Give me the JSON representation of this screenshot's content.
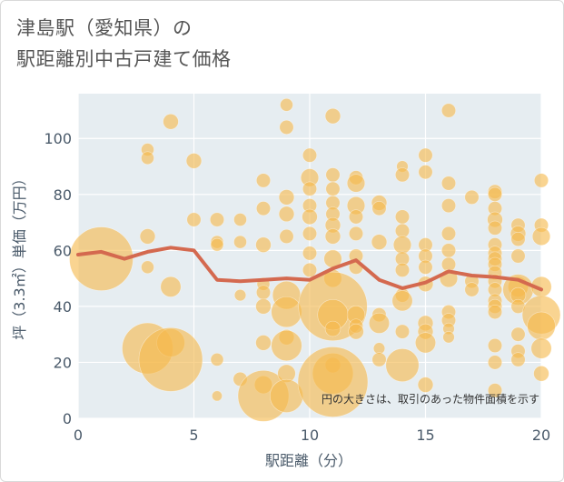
{
  "chart_data": {
    "type": "scatter",
    "title_line1": "津島駅（愛知県）の",
    "title_line2": "駅距離別中古戸建て価格",
    "xlabel": "駅距離（分）",
    "ylabel": "坪（3.3㎡）単価（万円）",
    "xlim": [
      0,
      20
    ],
    "ylim": [
      0,
      116
    ],
    "xticks": [
      0,
      5,
      10,
      15,
      20
    ],
    "yticks": [
      0,
      20,
      40,
      60,
      80,
      100
    ],
    "grid": true,
    "note": "円の大きさは、取引のあった物件面積を示す",
    "bubble_color": "#f5b94e",
    "line_color": "#d4694f",
    "points": [
      {
        "x": 1,
        "y": 57,
        "s": 5
      },
      {
        "x": 3,
        "y": 96,
        "s": 1
      },
      {
        "x": 3,
        "y": 93,
        "s": 1
      },
      {
        "x": 3,
        "y": 65,
        "s": 1.2
      },
      {
        "x": 3,
        "y": 54,
        "s": 1
      },
      {
        "x": 3,
        "y": 25,
        "s": 4
      },
      {
        "x": 4,
        "y": 106,
        "s": 1.2
      },
      {
        "x": 4,
        "y": 47,
        "s": 1.6
      },
      {
        "x": 4,
        "y": 27,
        "s": 2.2
      },
      {
        "x": 4,
        "y": 21,
        "s": 5
      },
      {
        "x": 5,
        "y": 92,
        "s": 1.2
      },
      {
        "x": 5,
        "y": 71,
        "s": 1.1
      },
      {
        "x": 6,
        "y": 71,
        "s": 1.1
      },
      {
        "x": 6,
        "y": 63,
        "s": 1
      },
      {
        "x": 6,
        "y": 62,
        "s": 1
      },
      {
        "x": 6,
        "y": 21,
        "s": 1
      },
      {
        "x": 6,
        "y": 8,
        "s": 0.8
      },
      {
        "x": 7,
        "y": 71,
        "s": 1
      },
      {
        "x": 7,
        "y": 63,
        "s": 1
      },
      {
        "x": 7,
        "y": 44,
        "s": 0.9
      },
      {
        "x": 7,
        "y": 14,
        "s": 1.1
      },
      {
        "x": 8,
        "y": 85,
        "s": 1.1
      },
      {
        "x": 8,
        "y": 75,
        "s": 1.1
      },
      {
        "x": 8,
        "y": 62,
        "s": 1.2
      },
      {
        "x": 8,
        "y": 48,
        "s": 1
      },
      {
        "x": 8,
        "y": 45,
        "s": 1.1
      },
      {
        "x": 8,
        "y": 40,
        "s": 1.2
      },
      {
        "x": 8,
        "y": 27,
        "s": 1.2
      },
      {
        "x": 8,
        "y": 12,
        "s": 1.4
      },
      {
        "x": 8,
        "y": 8,
        "s": 4
      },
      {
        "x": 9,
        "y": 112,
        "s": 1
      },
      {
        "x": 9,
        "y": 104,
        "s": 1.1
      },
      {
        "x": 9,
        "y": 79,
        "s": 1.2
      },
      {
        "x": 9,
        "y": 73,
        "s": 1.2
      },
      {
        "x": 9,
        "y": 65,
        "s": 1.1
      },
      {
        "x": 9,
        "y": 44,
        "s": 2.2
      },
      {
        "x": 9,
        "y": 38,
        "s": 2.4
      },
      {
        "x": 9,
        "y": 29,
        "s": 1.2
      },
      {
        "x": 9,
        "y": 26,
        "s": 2.4
      },
      {
        "x": 9,
        "y": 16,
        "s": 1.4
      },
      {
        "x": 9,
        "y": 8,
        "s": 2.6
      },
      {
        "x": 10,
        "y": 94,
        "s": 1.1
      },
      {
        "x": 10,
        "y": 86,
        "s": 1.4
      },
      {
        "x": 10,
        "y": 82,
        "s": 1.1
      },
      {
        "x": 10,
        "y": 76,
        "s": 1.1
      },
      {
        "x": 10,
        "y": 72,
        "s": 1.2
      },
      {
        "x": 10,
        "y": 66,
        "s": 1.1
      },
      {
        "x": 10,
        "y": 59,
        "s": 1.1
      },
      {
        "x": 10,
        "y": 53,
        "s": 1.1
      },
      {
        "x": 11,
        "y": 108,
        "s": 1.2
      },
      {
        "x": 11,
        "y": 87,
        "s": 1.1
      },
      {
        "x": 11,
        "y": 82,
        "s": 1.1
      },
      {
        "x": 11,
        "y": 77,
        "s": 1.1
      },
      {
        "x": 11,
        "y": 73,
        "s": 1.1
      },
      {
        "x": 11,
        "y": 69,
        "s": 1.2
      },
      {
        "x": 11,
        "y": 65,
        "s": 1.2
      },
      {
        "x": 11,
        "y": 57,
        "s": 1.4
      },
      {
        "x": 11,
        "y": 50,
        "s": 1.4
      },
      {
        "x": 11,
        "y": 40,
        "s": 5.4
      },
      {
        "x": 11,
        "y": 37,
        "s": 2.4
      },
      {
        "x": 11,
        "y": 32,
        "s": 1.2
      },
      {
        "x": 11,
        "y": 19,
        "s": 1.2
      },
      {
        "x": 11,
        "y": 16,
        "s": 3.2
      },
      {
        "x": 11,
        "y": 13,
        "s": 5.5
      },
      {
        "x": 12,
        "y": 86,
        "s": 1.1
      },
      {
        "x": 12,
        "y": 84,
        "s": 1.4
      },
      {
        "x": 12,
        "y": 76,
        "s": 1.4
      },
      {
        "x": 12,
        "y": 72,
        "s": 1.1
      },
      {
        "x": 12,
        "y": 66,
        "s": 1.1
      },
      {
        "x": 12,
        "y": 58,
        "s": 1.1
      },
      {
        "x": 12,
        "y": 54,
        "s": 1.1
      },
      {
        "x": 12,
        "y": 37,
        "s": 1.4
      },
      {
        "x": 12,
        "y": 33,
        "s": 1.1
      },
      {
        "x": 12,
        "y": 31,
        "s": 1.2
      },
      {
        "x": 13,
        "y": 77,
        "s": 1.2
      },
      {
        "x": 13,
        "y": 75,
        "s": 1.1
      },
      {
        "x": 13,
        "y": 63,
        "s": 1.2
      },
      {
        "x": 13,
        "y": 37,
        "s": 1.1
      },
      {
        "x": 13,
        "y": 34,
        "s": 1.6
      },
      {
        "x": 13,
        "y": 25,
        "s": 0.9
      },
      {
        "x": 13,
        "y": 21,
        "s": 1.1
      },
      {
        "x": 14,
        "y": 90,
        "s": 0.9
      },
      {
        "x": 14,
        "y": 87,
        "s": 1.1
      },
      {
        "x": 14,
        "y": 72,
        "s": 1.1
      },
      {
        "x": 14,
        "y": 67,
        "s": 1.1
      },
      {
        "x": 14,
        "y": 62,
        "s": 1.4
      },
      {
        "x": 14,
        "y": 57,
        "s": 1.1
      },
      {
        "x": 14,
        "y": 53,
        "s": 1.1
      },
      {
        "x": 14,
        "y": 44,
        "s": 1.1
      },
      {
        "x": 14,
        "y": 42,
        "s": 1.6
      },
      {
        "x": 14,
        "y": 31,
        "s": 1.1
      },
      {
        "x": 14,
        "y": 19,
        "s": 2.6
      },
      {
        "x": 15,
        "y": 94,
        "s": 1.1
      },
      {
        "x": 15,
        "y": 88,
        "s": 1.1
      },
      {
        "x": 15,
        "y": 62,
        "s": 1.1
      },
      {
        "x": 15,
        "y": 58,
        "s": 1.1
      },
      {
        "x": 15,
        "y": 54,
        "s": 1.1
      },
      {
        "x": 15,
        "y": 48,
        "s": 1.2
      },
      {
        "x": 15,
        "y": 34,
        "s": 1.2
      },
      {
        "x": 15,
        "y": 31,
        "s": 1.2
      },
      {
        "x": 15,
        "y": 27,
        "s": 1.6
      },
      {
        "x": 15,
        "y": 12,
        "s": 1.2
      },
      {
        "x": 16,
        "y": 110,
        "s": 1.1
      },
      {
        "x": 16,
        "y": 84,
        "s": 1.1
      },
      {
        "x": 16,
        "y": 76,
        "s": 1.1
      },
      {
        "x": 16,
        "y": 66,
        "s": 1.1
      },
      {
        "x": 16,
        "y": 60,
        "s": 1.1
      },
      {
        "x": 16,
        "y": 55,
        "s": 1.1
      },
      {
        "x": 16,
        "y": 50,
        "s": 1.4
      },
      {
        "x": 16,
        "y": 38,
        "s": 1.1
      },
      {
        "x": 16,
        "y": 35,
        "s": 1.1
      },
      {
        "x": 16,
        "y": 32,
        "s": 0.9
      },
      {
        "x": 16,
        "y": 29,
        "s": 0.9
      },
      {
        "x": 17,
        "y": 79,
        "s": 1.1
      },
      {
        "x": 17,
        "y": 49,
        "s": 1.1
      },
      {
        "x": 17,
        "y": 46,
        "s": 1.1
      },
      {
        "x": 18,
        "y": 81,
        "s": 1.1
      },
      {
        "x": 18,
        "y": 80,
        "s": 1.1
      },
      {
        "x": 18,
        "y": 75,
        "s": 1.1
      },
      {
        "x": 18,
        "y": 71,
        "s": 1.2
      },
      {
        "x": 18,
        "y": 68,
        "s": 1.1
      },
      {
        "x": 18,
        "y": 62,
        "s": 1.1
      },
      {
        "x": 18,
        "y": 59,
        "s": 1.1
      },
      {
        "x": 18,
        "y": 57,
        "s": 1.1
      },
      {
        "x": 18,
        "y": 55,
        "s": 1.1
      },
      {
        "x": 18,
        "y": 52,
        "s": 1.1
      },
      {
        "x": 18,
        "y": 49,
        "s": 1.1
      },
      {
        "x": 18,
        "y": 46,
        "s": 1.1
      },
      {
        "x": 18,
        "y": 42,
        "s": 1.1
      },
      {
        "x": 18,
        "y": 40,
        "s": 1.1
      },
      {
        "x": 18,
        "y": 38,
        "s": 1.1
      },
      {
        "x": 18,
        "y": 26,
        "s": 1.1
      },
      {
        "x": 18,
        "y": 20,
        "s": 1.1
      },
      {
        "x": 18,
        "y": 10,
        "s": 1.1
      },
      {
        "x": 19,
        "y": 69,
        "s": 1.1
      },
      {
        "x": 19,
        "y": 66,
        "s": 1.2
      },
      {
        "x": 19,
        "y": 64,
        "s": 1.1
      },
      {
        "x": 19,
        "y": 58,
        "s": 1.1
      },
      {
        "x": 19,
        "y": 47,
        "s": 1.6
      },
      {
        "x": 19,
        "y": 46,
        "s": 2.4
      },
      {
        "x": 19,
        "y": 44,
        "s": 1.2
      },
      {
        "x": 19,
        "y": 40,
        "s": 1.1
      },
      {
        "x": 19,
        "y": 30,
        "s": 1.1
      },
      {
        "x": 19,
        "y": 24,
        "s": 1.1
      },
      {
        "x": 19,
        "y": 21,
        "s": 1.1
      },
      {
        "x": 20,
        "y": 85,
        "s": 1.1
      },
      {
        "x": 20,
        "y": 69,
        "s": 1.1
      },
      {
        "x": 20,
        "y": 65,
        "s": 1.4
      },
      {
        "x": 20,
        "y": 47,
        "s": 1.6
      },
      {
        "x": 20,
        "y": 37,
        "s": 3
      },
      {
        "x": 20,
        "y": 33,
        "s": 2.2
      },
      {
        "x": 20,
        "y": 25,
        "s": 1.6
      },
      {
        "x": 20,
        "y": 16,
        "s": 1.2
      }
    ],
    "average_line": {
      "x": [
        0,
        1,
        2,
        3,
        4,
        5,
        6,
        7,
        8,
        9,
        10,
        11,
        12,
        13,
        14,
        15,
        16,
        17,
        18,
        19,
        20
      ],
      "y": [
        58.5,
        59.5,
        57,
        59.5,
        61,
        60,
        49.5,
        49,
        49.5,
        50,
        49.5,
        53.5,
        56.5,
        49.5,
        46.5,
        48.5,
        52.5,
        51,
        50.5,
        49.5,
        46
      ]
    }
  }
}
